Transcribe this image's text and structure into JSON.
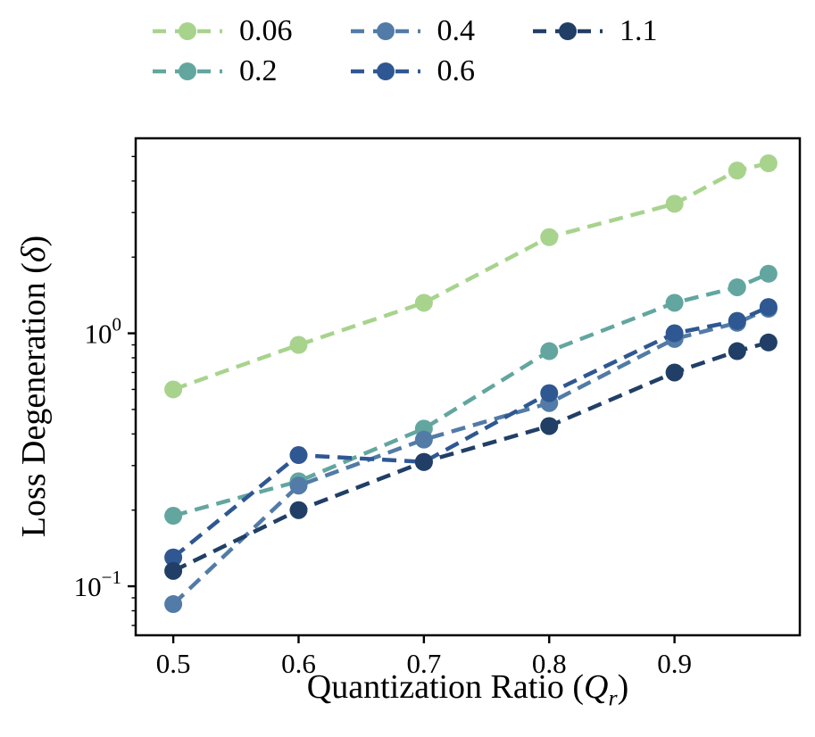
{
  "chart_data": {
    "type": "line",
    "title": "",
    "xlabel": "Quantization Ratio (Q_r)",
    "ylabel": "Loss Degeneration (δ)",
    "xlabel_parts": {
      "prefix": "Quantization Ratio (",
      "var": "Q",
      "sub": "r",
      "suffix": ")"
    },
    "ylabel_parts": {
      "prefix": "Loss Degeneration (",
      "var": "δ",
      "suffix": ")"
    },
    "x_scale": "linear",
    "y_scale": "log",
    "xlim": [
      0.47,
      1.0
    ],
    "ylim": [
      0.064,
      5.9
    ],
    "grid": false,
    "legend": {
      "position": "top",
      "columns": 3,
      "frame": false
    },
    "x_ticks": [
      {
        "value": 0.5,
        "label": "0.5"
      },
      {
        "value": 0.6,
        "label": "0.6"
      },
      {
        "value": 0.7,
        "label": "0.7"
      },
      {
        "value": 0.8,
        "label": "0.8"
      },
      {
        "value": 0.9,
        "label": "0.9"
      }
    ],
    "y_ticks": [
      {
        "value": 0.1,
        "base": "10",
        "exp": "−1"
      },
      {
        "value": 1,
        "base": "10",
        "exp": "0"
      }
    ],
    "x": [
      0.5,
      0.6,
      0.7,
      0.8,
      0.9,
      0.95,
      0.975
    ],
    "series": [
      {
        "name": "0.06",
        "color": "#a8d38d",
        "values": [
          0.6,
          0.9,
          1.32,
          2.4,
          3.25,
          4.4,
          4.7
        ]
      },
      {
        "name": "0.2",
        "color": "#63a6a0",
        "values": [
          0.19,
          0.26,
          0.42,
          0.85,
          1.32,
          1.52,
          1.72
        ]
      },
      {
        "name": "0.4",
        "color": "#527ba7",
        "values": [
          0.085,
          0.25,
          0.38,
          0.53,
          0.95,
          1.1,
          1.25
        ]
      },
      {
        "name": "0.6",
        "color": "#2f5792",
        "values": [
          0.13,
          0.33,
          0.31,
          0.58,
          1.0,
          1.12,
          1.27
        ]
      },
      {
        "name": "1.1",
        "color": "#213f66",
        "values": [
          0.115,
          0.2,
          0.31,
          0.43,
          0.7,
          0.85,
          0.92
        ]
      }
    ],
    "marker": {
      "shape": "circle",
      "radius": 10
    },
    "line_style": {
      "dash": "16 9",
      "width": 4.5
    }
  }
}
